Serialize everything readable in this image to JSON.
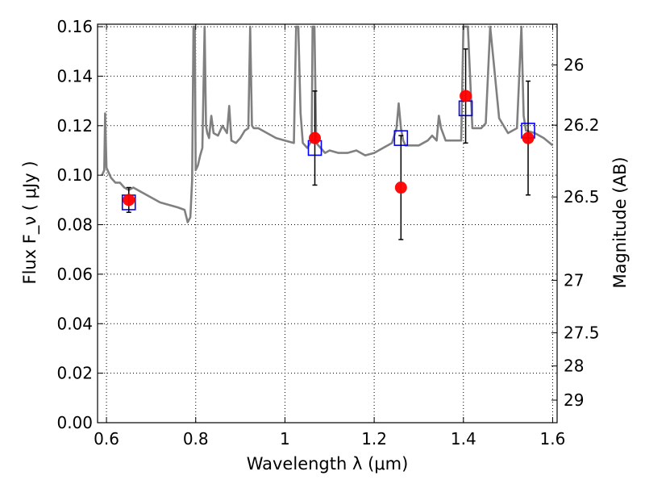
{
  "chart_data": {
    "type": "scatter",
    "title": "",
    "xlabel": "Wavelength  λ (μm)",
    "ylabel": "Flux  F_ν  ( μJy )",
    "y2label": "Magnitude (AB)",
    "xlim": [
      0.58,
      1.61
    ],
    "ylim": [
      0.0,
      0.161
    ],
    "grid": true,
    "x_ticks": [
      0.6,
      0.8,
      1.0,
      1.2,
      1.4,
      1.6
    ],
    "x_tick_labels": [
      "0.6",
      "0.8",
      "1",
      "1.2",
      "1.4",
      "1.6"
    ],
    "y_ticks": [
      0.0,
      0.02,
      0.04,
      0.06,
      0.08,
      0.1,
      0.12,
      0.14,
      0.16
    ],
    "y_tick_labels": [
      "0.00",
      "0.02",
      "0.04",
      "0.06",
      "0.08",
      "0.10",
      "0.12",
      "0.14",
      "0.16"
    ],
    "mag_ticks": [
      26,
      26.2,
      26.5,
      27,
      27.5,
      28,
      29
    ],
    "mag_tick_labels": [
      "26",
      "26.2",
      "26.5",
      "27",
      "27.5",
      "28",
      "29"
    ],
    "colors": {
      "model": "#808080",
      "observed": "#ff0000",
      "model_band": "#0000ff",
      "errorbar": "#000000",
      "grid": "#000000"
    },
    "series": [
      {
        "type": "line",
        "x": [
          0.59,
          0.595,
          0.597,
          0.6,
          0.61,
          0.62,
          0.63,
          0.64,
          0.65,
          0.66,
          0.68,
          0.7,
          0.72,
          0.74,
          0.76,
          0.775,
          0.782,
          0.788,
          0.792,
          0.795,
          0.798,
          0.8,
          0.805,
          0.81,
          0.815,
          0.82,
          0.823,
          0.826,
          0.83,
          0.835,
          0.84,
          0.85,
          0.86,
          0.87,
          0.875,
          0.88,
          0.89,
          0.9,
          0.91,
          0.918,
          0.922,
          0.926,
          0.93,
          0.94,
          0.96,
          0.98,
          1.0,
          1.02,
          1.025,
          1.03,
          1.035,
          1.04,
          1.05,
          1.06,
          1.062,
          1.066,
          1.07,
          1.09,
          1.1,
          1.12,
          1.14,
          1.16,
          1.18,
          1.2,
          1.22,
          1.24,
          1.25,
          1.255,
          1.26,
          1.265,
          1.27,
          1.3,
          1.32,
          1.33,
          1.34,
          1.345,
          1.35,
          1.36,
          1.38,
          1.395,
          1.4,
          1.41,
          1.42,
          1.44,
          1.45,
          1.46,
          1.48,
          1.5,
          1.52,
          1.53,
          1.535,
          1.54,
          1.56,
          1.58,
          1.6
        ],
        "y": [
          0.1,
          0.102,
          0.125,
          0.103,
          0.099,
          0.097,
          0.097,
          0.095,
          0.094,
          0.095,
          0.093,
          0.091,
          0.089,
          0.088,
          0.087,
          0.086,
          0.081,
          0.083,
          0.098,
          0.16,
          0.16,
          0.102,
          0.104,
          0.108,
          0.111,
          0.16,
          0.12,
          0.117,
          0.115,
          0.124,
          0.117,
          0.116,
          0.12,
          0.117,
          0.128,
          0.114,
          0.113,
          0.115,
          0.118,
          0.119,
          0.16,
          0.12,
          0.119,
          0.119,
          0.117,
          0.115,
          0.114,
          0.113,
          0.16,
          0.16,
          0.125,
          0.113,
          0.111,
          0.114,
          0.16,
          0.16,
          0.113,
          0.109,
          0.11,
          0.109,
          0.109,
          0.11,
          0.108,
          0.109,
          0.111,
          0.113,
          0.119,
          0.129,
          0.119,
          0.114,
          0.112,
          0.112,
          0.114,
          0.116,
          0.114,
          0.124,
          0.119,
          0.114,
          0.114,
          0.114,
          0.16,
          0.16,
          0.119,
          0.119,
          0.121,
          0.16,
          0.123,
          0.117,
          0.119,
          0.16,
          0.124,
          0.118,
          0.117,
          0.115,
          0.112
        ]
      },
      {
        "type": "scatter",
        "marker": "circle",
        "x": [
          0.65,
          1.067,
          1.26,
          1.405,
          1.545
        ],
        "y": [
          0.09,
          0.115,
          0.095,
          0.132,
          0.115
        ],
        "yerr": [
          0.005,
          0.019,
          0.021,
          0.019,
          0.023
        ]
      },
      {
        "type": "scatter",
        "marker": "square",
        "x": [
          0.65,
          1.067,
          1.26,
          1.405,
          1.545
        ],
        "y": [
          0.089,
          0.111,
          0.115,
          0.127,
          0.118
        ]
      }
    ]
  }
}
